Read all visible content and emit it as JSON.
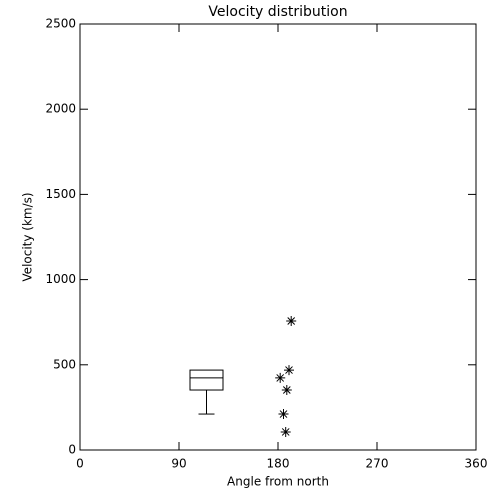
{
  "chart_data": {
    "type": "box",
    "title": "Velocity distribution",
    "x_label": "Angle from north",
    "y_label": "Velocity (km/s)",
    "xlim": [
      0,
      360
    ],
    "xticks": [
      0,
      90,
      180,
      270,
      360
    ],
    "ylim": [
      0,
      2500
    ],
    "yticks": [
      0,
      500,
      1000,
      1500,
      2000,
      2500
    ],
    "box": {
      "x": 115,
      "width": 30,
      "whisker_low": 211,
      "q1": 352,
      "median": 423,
      "q3": 469,
      "whisker_high": 469
    },
    "points": {
      "x": [
        192,
        190,
        188,
        182,
        185,
        187
      ],
      "y": [
        757,
        469,
        352,
        423,
        211,
        106
      ]
    },
    "color": "#000000"
  }
}
